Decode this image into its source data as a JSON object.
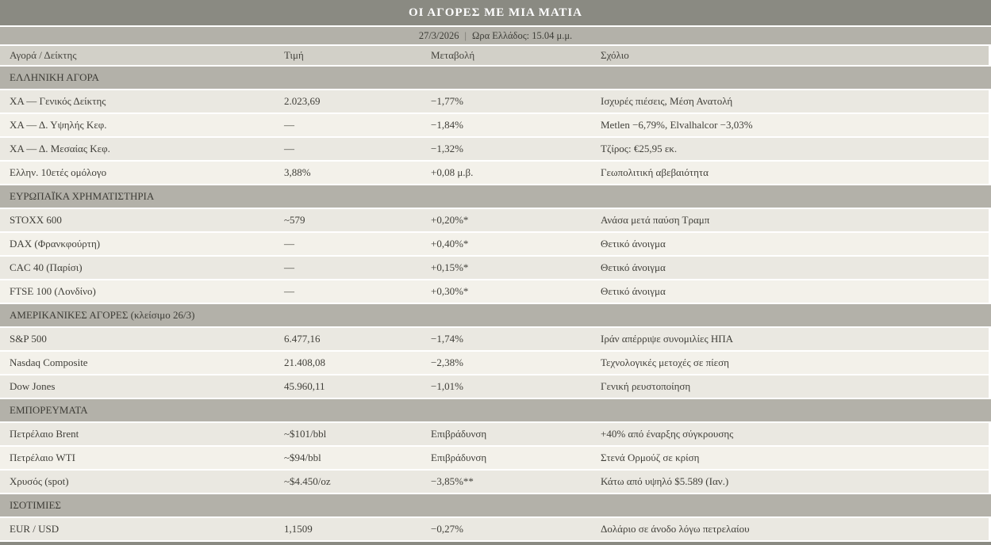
{
  "title": "ΟΙ ΑΓΟΡΕΣ ΜΕ ΜΙΑ ΜΑΤΙΑ",
  "date_bar": {
    "date": "27/3/2026",
    "separator": "|",
    "time": "Ωρα Ελλάδος: 15.04 μ.μ."
  },
  "columns": [
    "Αγορά / Δείκτης",
    "Τιμή",
    "Μεταβολή",
    "Σχόλιο"
  ],
  "sections": [
    {
      "header": "ΕΛΛΗΝΙΚΗ ΑΓΟΡΑ",
      "rows": [
        {
          "name": "ΧΑ — Γενικός Δείκτης",
          "price": "2.023,69",
          "change": "−1,77%",
          "comment": "Ισχυρές πιέσεις, Μέση Ανατολή"
        },
        {
          "name": "ΧΑ — Δ. Υψηλής Κεφ.",
          "price": "—",
          "change": "−1,84%",
          "comment": "Metlen −6,79%, Elvalhalcor −3,03%"
        },
        {
          "name": "ΧΑ — Δ. Μεσαίας Κεφ.",
          "price": "—",
          "change": "−1,32%",
          "comment": "Τζίρος: €25,95 εκ."
        },
        {
          "name": "Ελλην. 10ετές ομόλογο",
          "price": "3,88%",
          "change": "+0,08 μ.β.",
          "comment": "Γεωπολιτική αβεβαιότητα"
        }
      ]
    },
    {
      "header": "ΕΥΡΩΠΑΪΚΑ ΧΡΗΜΑΤΙΣΤΗΡΙΑ",
      "rows": [
        {
          "name": "STOXX 600",
          "price": "~579",
          "change": "+0,20%*",
          "comment": "Ανάσα μετά παύση Τραμπ"
        },
        {
          "name": "DAX (Φρανκφούρτη)",
          "price": "—",
          "change": "+0,40%*",
          "comment": "Θετικό άνοιγμα"
        },
        {
          "name": "CAC 40 (Παρίσι)",
          "price": "—",
          "change": "+0,15%*",
          "comment": "Θετικό άνοιγμα"
        },
        {
          "name": "FTSE 100 (Λονδίνο)",
          "price": "—",
          "change": "+0,30%*",
          "comment": "Θετικό άνοιγμα"
        }
      ]
    },
    {
      "header": "ΑΜΕΡΙΚΑΝΙΚΕΣ ΑΓΟΡΕΣ (κλείσιμο 26/3)",
      "rows": [
        {
          "name": "S&P 500",
          "price": "6.477,16",
          "change": "−1,74%",
          "comment": "Ιράν απέρριψε συνομιλίες ΗΠΑ"
        },
        {
          "name": "Nasdaq Composite",
          "price": "21.408,08",
          "change": "−2,38%",
          "comment": "Τεχνολογικές μετοχές σε πίεση"
        },
        {
          "name": "Dow Jones",
          "price": "45.960,11",
          "change": "−1,01%",
          "comment": "Γενική ρευστοποίηση"
        }
      ]
    },
    {
      "header": "ΕΜΠΟΡΕΥΜΑΤΑ",
      "rows": [
        {
          "name": "Πετρέλαιο Brent",
          "price": "~$101/bbl",
          "change": "Επιβράδυνση",
          "comment": "+40% από έναρξης σύγκρουσης"
        },
        {
          "name": "Πετρέλαιο WTI",
          "price": "~$94/bbl",
          "change": "Επιβράδυνση",
          "comment": "Στενά Ορμούζ σε κρίση"
        },
        {
          "name": "Χρυσός (spot)",
          "price": "~$4.450/oz",
          "change": "−3,85%**",
          "comment": "Κάτω από υψηλό $5.589 (Ιαν.)"
        }
      ]
    },
    {
      "header": "ΙΣΟΤΙΜΙΕΣ",
      "rows": [
        {
          "name": "EUR / USD",
          "price": "1,1509",
          "change": "−0,27%",
          "comment": "Δολάριο σε άνοδο λόγω πετρελαίου"
        }
      ]
    }
  ],
  "colors": {
    "title_bar_bg": "#8a8a82",
    "title_text": "#ffffff",
    "band_bg": "#b3b1a9",
    "column_header_bg": "#d2d0c8",
    "row_odd_bg": "#eae8e1",
    "row_even_bg": "#f3f1ea",
    "text": "#403f39",
    "footer_bar_bg": "#8a8a82"
  }
}
